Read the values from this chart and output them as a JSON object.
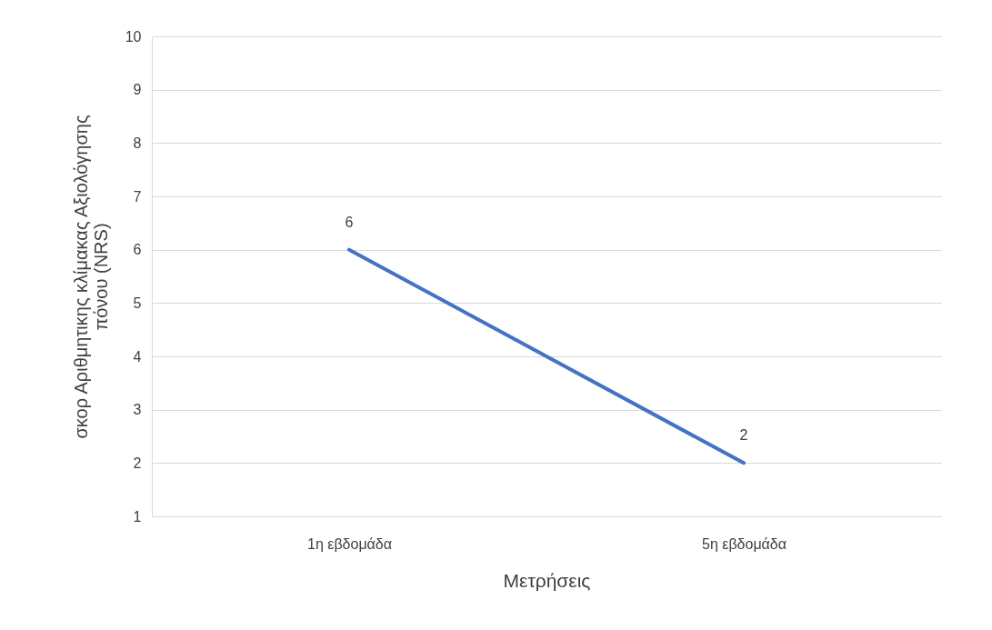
{
  "chart_data": {
    "type": "line",
    "xlabel": "Μετρήσεις",
    "ylabel": "σκορ Αριθμητικης  κλίμακας Αξιολόγησης πόνου (NRS)",
    "categories": [
      "1η εβδομάδα",
      "5η εβδομάδα"
    ],
    "series": [
      {
        "color": "#4472c4",
        "values": [
          6,
          2
        ]
      }
    ],
    "ylim": [
      1,
      10
    ],
    "yticks": [
      1,
      2,
      3,
      4,
      5,
      6,
      7,
      8,
      9,
      10
    ],
    "grid": "y",
    "data_labels": true
  }
}
